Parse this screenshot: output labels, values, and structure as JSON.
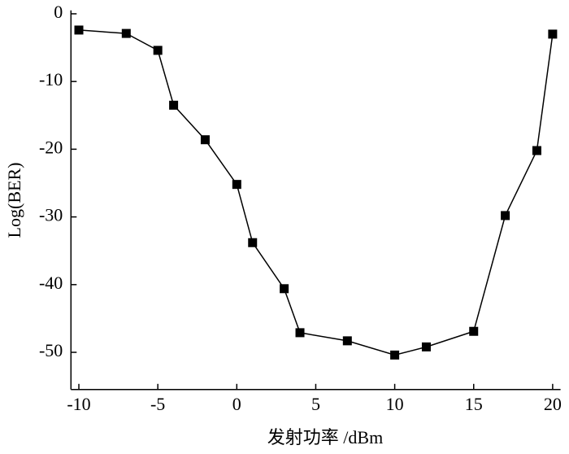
{
  "chart_data": {
    "type": "line",
    "x_label": "发射功率 /dBm",
    "y_label": "Log(BER)",
    "x": [
      -10,
      -7,
      -5,
      -4,
      -2,
      0,
      1,
      3,
      4,
      7,
      10,
      12,
      15,
      17,
      19,
      20
    ],
    "series": [
      {
        "color": "#000000",
        "values": [
          -2.4,
          -2.9,
          -5.4,
          -13.5,
          -18.6,
          -25.2,
          -33.8,
          -40.6,
          -47.1,
          -48.3,
          -50.4,
          -49.2,
          -46.9,
          -29.8,
          -20.2,
          -3.0
        ]
      }
    ],
    "xlim": [
      -10.5,
      20.5
    ],
    "xticks": [
      -10,
      -5,
      0,
      5,
      10,
      15,
      20
    ],
    "ylim": [
      -55.5,
      0.5
    ],
    "yticks": [
      0,
      -10,
      -20,
      -30,
      -40,
      -50
    ]
  }
}
